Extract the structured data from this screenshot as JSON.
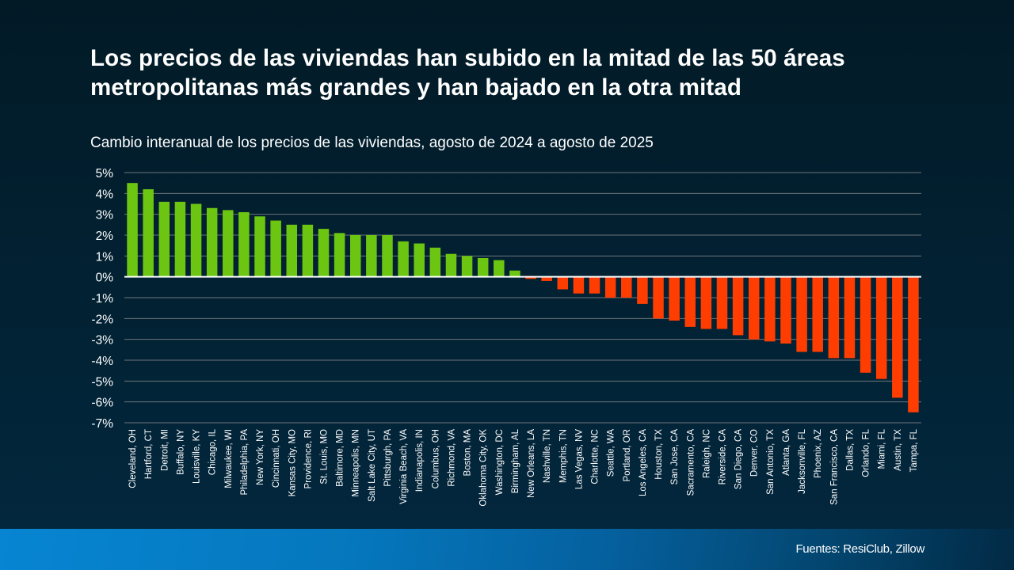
{
  "header": {
    "title": "Los precios de las viviendas han subido en la mitad de las 50 áreas metropolitanas más grandes y han bajado en la otra mitad",
    "subtitle": "Cambio interanual de los precios de las viviendas, agosto de 2024 a agosto de 2025"
  },
  "footer": {
    "source": "Fuentes: ResiClub, Zillow"
  },
  "colors": {
    "positive": "#6cc611",
    "negative": "#ff3d00",
    "zero_line": "#ffffff",
    "gridline": "#6e7479",
    "text": "#ffffff"
  },
  "chart_data": {
    "type": "bar",
    "title": "Cambio interanual de los precios de las viviendas, agosto de 2024 a agosto de 2025",
    "xlabel": "",
    "ylabel": "",
    "ylim": [
      -7,
      5
    ],
    "y_ticks": [
      5,
      4,
      3,
      2,
      1,
      0,
      -1,
      -2,
      -3,
      -4,
      -5,
      -6,
      -7
    ],
    "y_tick_labels": [
      "5%",
      "4%",
      "3%",
      "2%",
      "1%",
      "0%",
      "-1%",
      "-2%",
      "-3%",
      "-4%",
      "-5%",
      "-6%",
      "-7%"
    ],
    "grid": true,
    "legend": "none",
    "unit": "%",
    "categories": [
      "Cleveland, OH",
      "Hartford, CT",
      "Detroit, MI",
      "Buffalo, NY",
      "Louisville, KY",
      "Chicago, IL",
      "Milwaukee, WI",
      "Philadelphia, PA",
      "New York, NY",
      "Cincinnati, OH",
      "Kansas City, MO",
      "Providence, RI",
      "St. Louis, MO",
      "Baltimore, MD",
      "Minneapolis, MN",
      "Salt Lake City, UT",
      "Pittsburgh, PA",
      "Virginia Beach, VA",
      "Indianapolis, IN",
      "Columbus, OH",
      "Richmond, VA",
      "Boston, MA",
      "Oklahoma City, OK",
      "Washington, DC",
      "Birmingham, AL",
      "New Orleans, LA",
      "Nashville, TN",
      "Memphis, TN",
      "Las Vegas, NV",
      "Charlotte, NC",
      "Seattle, WA",
      "Portland, OR",
      "Los Angeles, CA",
      "Houston, TX",
      "San Jose, CA",
      "Sacramento, CA",
      "Raleigh, NC",
      "Riverside, CA",
      "San Diego, CA",
      "Denver, CO",
      "San Antonio, TX",
      "Atlanta, GA",
      "Jacksonville, FL",
      "Phoenix, AZ",
      "San Francisco, CA",
      "Dallas, TX",
      "Orlando, FL",
      "Miami, FL",
      "Austin, TX",
      "Tampa, FL"
    ],
    "values": [
      4.5,
      4.2,
      3.6,
      3.6,
      3.5,
      3.3,
      3.2,
      3.1,
      2.9,
      2.7,
      2.5,
      2.5,
      2.3,
      2.1,
      2.0,
      2.0,
      2.0,
      1.7,
      1.6,
      1.4,
      1.1,
      1.0,
      0.9,
      0.8,
      0.3,
      -0.1,
      -0.2,
      -0.6,
      -0.8,
      -0.8,
      -1.0,
      -1.0,
      -1.3,
      -2.0,
      -2.1,
      -2.4,
      -2.5,
      -2.5,
      -2.8,
      -3.0,
      -3.1,
      -3.2,
      -3.6,
      -3.6,
      -3.9,
      -3.9,
      -4.6,
      -4.9,
      -5.8,
      -6.5
    ]
  }
}
